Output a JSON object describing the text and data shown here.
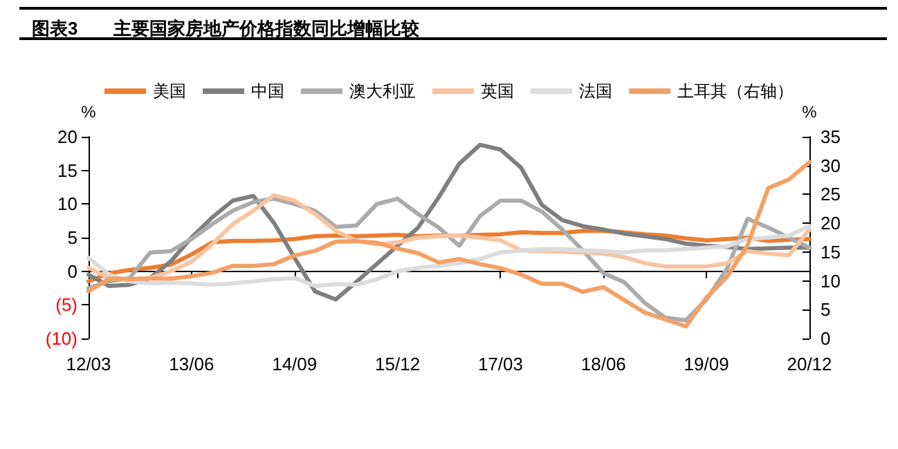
{
  "chart_data": {
    "type": "line",
    "title": "图表3　　主要国家房地产价格指数同比增幅比较",
    "categories": [
      "12/03",
      null,
      null,
      null,
      null,
      "13/06",
      null,
      null,
      null,
      null,
      "14/09",
      null,
      null,
      null,
      null,
      "15/12",
      null,
      null,
      null,
      null,
      "17/03",
      null,
      null,
      null,
      null,
      "18/06",
      null,
      null,
      null,
      null,
      "19/09",
      null,
      null,
      null,
      null,
      "20/12"
    ],
    "series": [
      {
        "name": "美国",
        "color": "#ed7d31",
        "values": [
          -1.5,
          -0.3,
          0.2,
          0.5,
          1,
          2.5,
          4.3,
          4.5,
          4.5,
          4.6,
          4.8,
          5.2,
          5.3,
          5.2,
          5.3,
          5.4,
          5.2,
          5.3,
          5.3,
          5.4,
          5.5,
          5.8,
          5.7,
          5.7,
          6.0,
          6.0,
          5.8,
          5.5,
          5.3,
          4.9,
          4.6,
          4.8,
          5.0,
          4.5,
          4.7,
          4.8
        ]
      },
      {
        "name": "中国",
        "color": "#7f7f7f",
        "values": [
          -0.5,
          -2.2,
          -2.0,
          -1.0,
          1.5,
          5,
          8,
          10.5,
          11.2,
          7.2,
          2,
          -3,
          -4.2,
          -1.6,
          1.1,
          3.8,
          6.5,
          11,
          16,
          18.8,
          18.1,
          15.4,
          9.9,
          7.6,
          6.7,
          6.2,
          5.6,
          5.2,
          4.8,
          4.1,
          3.8,
          3.6,
          3.3,
          3.4,
          3.5,
          3.5
        ]
      },
      {
        "name": "澳大利亚",
        "color": "#ababab",
        "values": [
          -2.5,
          -1.5,
          -1,
          2.8,
          3,
          4.8,
          7,
          9,
          10.3,
          10.8,
          10,
          9,
          6.6,
          6.8,
          10,
          10.8,
          8.5,
          6.5,
          3.8,
          8.2,
          10.5,
          10.5,
          8.9,
          6.2,
          3.1,
          -0.3,
          -1.6,
          -4.7,
          -6.9,
          -7.3,
          -4.2,
          0.4,
          7.8,
          6.5,
          5.0,
          3.5
        ]
      },
      {
        "name": "英国",
        "color": "#f8c4a0",
        "values": [
          0.5,
          -1,
          -1.2,
          -1,
          0,
          1.4,
          4,
          7,
          9,
          11.3,
          10.5,
          8.5,
          6,
          4.5,
          4,
          4.3,
          5,
          5.2,
          5.3,
          5.0,
          4.6,
          3.1,
          3,
          2.9,
          2.8,
          2.6,
          2.1,
          1.2,
          0.7,
          0.7,
          0.7,
          1.2,
          3,
          2.6,
          2.4,
          6.2
        ]
      },
      {
        "name": "法国",
        "color": "#dcdcdc",
        "values": [
          2,
          -0.5,
          -1.5,
          -1.8,
          -1.7,
          -1.8,
          -2,
          -1.8,
          -1.5,
          -1.2,
          -1,
          -2.2,
          -1.9,
          -2,
          -1.2,
          0,
          0.5,
          0.8,
          1.2,
          1.8,
          2.8,
          3.1,
          3.3,
          3.3,
          3.1,
          3,
          2.8,
          3.1,
          3.1,
          3.3,
          3.5,
          3.7,
          4.8,
          5,
          5.3,
          6.7
        ]
      },
      {
        "name": "土耳其（右轴）",
        "color": "#f4a064",
        "axis": "y2",
        "values": [
          8.2,
          10.4,
          10.3,
          10.4,
          10.4,
          10.8,
          11.4,
          12.6,
          12.6,
          12.9,
          14.4,
          15.2,
          16.8,
          16.9,
          16.6,
          15.6,
          14.8,
          13.2,
          13.8,
          12.9,
          12.2,
          11.1,
          9.5,
          9.5,
          8.1,
          8.9,
          6.7,
          4.5,
          3.3,
          2.1,
          7.1,
          10.7,
          16.2,
          26.1,
          27.6,
          30.6
        ]
      }
    ],
    "ylabel": "%",
    "y2label": "%",
    "ylim": [
      -10,
      20
    ],
    "yticks": [
      {
        "value": -10,
        "label": "(10)"
      },
      {
        "value": -5,
        "label": "(5)"
      },
      0,
      5,
      10,
      15,
      20
    ],
    "y2lim": [
      0,
      35
    ],
    "y2ticks": [
      0,
      5,
      10,
      15,
      20,
      25,
      30,
      35
    ],
    "legend": "top",
    "marker": "none",
    "line_style": "solid"
  }
}
